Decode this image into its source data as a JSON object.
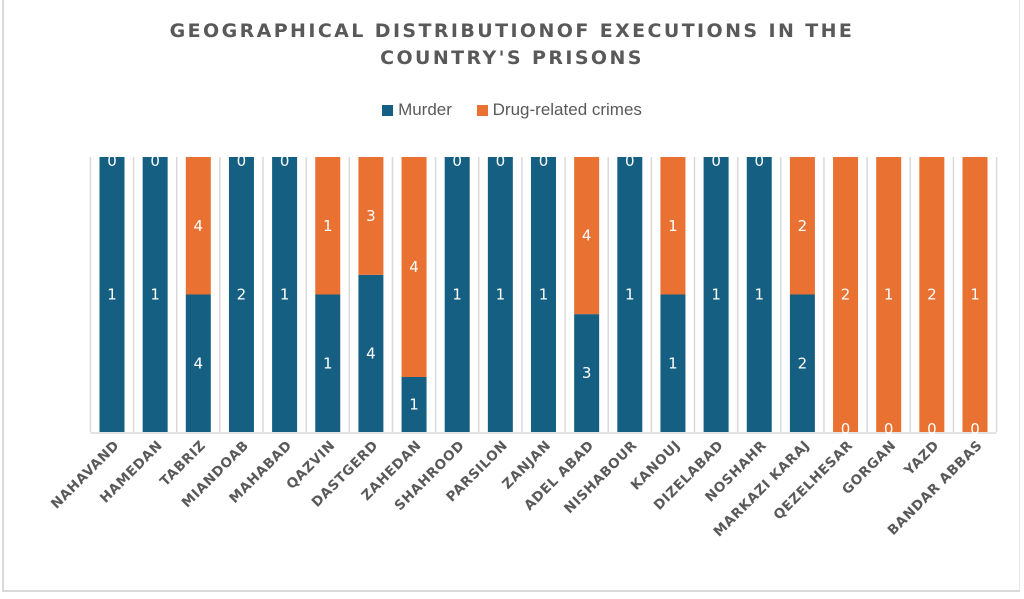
{
  "chart_data": {
    "type": "bar",
    "stacked": "percent",
    "title": "GEOGRAPHICAL DISTRIBUTIONOF EXECUTIONS IN THE COUNTRY'S PRISONS",
    "title_lines": [
      "GEOGRAPHICAL DISTRIBUTIONOF EXECUTIONS IN THE",
      "COUNTRY'S PRISONS"
    ],
    "xlabel": "",
    "ylabel": "",
    "ylim": [
      0,
      100
    ],
    "grid": false,
    "legend_position": "top",
    "categories": [
      "NAHAVAND",
      "HAMEDAN",
      "TABRIZ",
      "MIANDOAB",
      "MAHABAD",
      "QAZVIN",
      "DASTGERD",
      "ZAHEDAN",
      "SHAHROOD",
      "PARSILON",
      "ZANJAN",
      "ADEL ABAD",
      "NISHABOUR",
      "KANOUJ",
      "DIZELABAD",
      "NOSHAHR",
      "MARKAZI KARAJ",
      "QEZELHESAR",
      "GORGAN",
      "YAZD",
      "BANDAR ABBAS"
    ],
    "series": [
      {
        "name": "Murder",
        "color": "#156082",
        "values": [
          1,
          1,
          4,
          2,
          1,
          1,
          4,
          1,
          1,
          1,
          1,
          3,
          1,
          1,
          1,
          1,
          2,
          0,
          0,
          0,
          0
        ]
      },
      {
        "name": "Drug-related crimes",
        "color": "#E97132",
        "values": [
          0,
          0,
          4,
          0,
          0,
          1,
          3,
          4,
          0,
          0,
          0,
          4,
          0,
          1,
          0,
          0,
          2,
          2,
          1,
          2,
          1
        ]
      }
    ]
  }
}
